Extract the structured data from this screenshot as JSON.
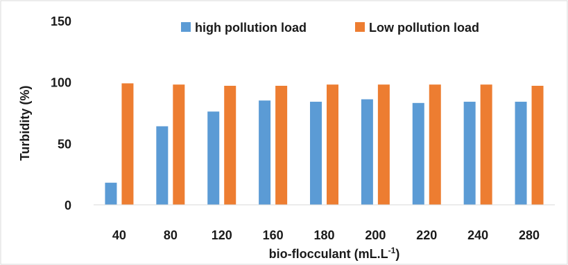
{
  "chart_data": {
    "type": "bar",
    "categories": [
      "40",
      "80",
      "120",
      "160",
      "180",
      "200",
      "220",
      "240",
      "280"
    ],
    "series": [
      {
        "name": "high pollution load",
        "color": "#5b9bd5",
        "values": [
          18,
          64,
          76,
          85,
          84,
          86,
          83,
          84,
          84
        ]
      },
      {
        "name": "Low pollution load",
        "color": "#ed7d31",
        "values": [
          99,
          98,
          97,
          97,
          98,
          98,
          98,
          98,
          97
        ]
      }
    ],
    "title": "",
    "xlabel": {
      "main": "bio-flocculant (mL.L",
      "sup": "-1",
      "tail": ")"
    },
    "ylabel": "Turbidity (%)",
    "ylim": [
      0,
      150
    ],
    "yticks": [
      "0",
      "50",
      "100",
      "150"
    ],
    "grid": false,
    "legend_position": "top-center",
    "frame_color": "#d9d9d9"
  }
}
